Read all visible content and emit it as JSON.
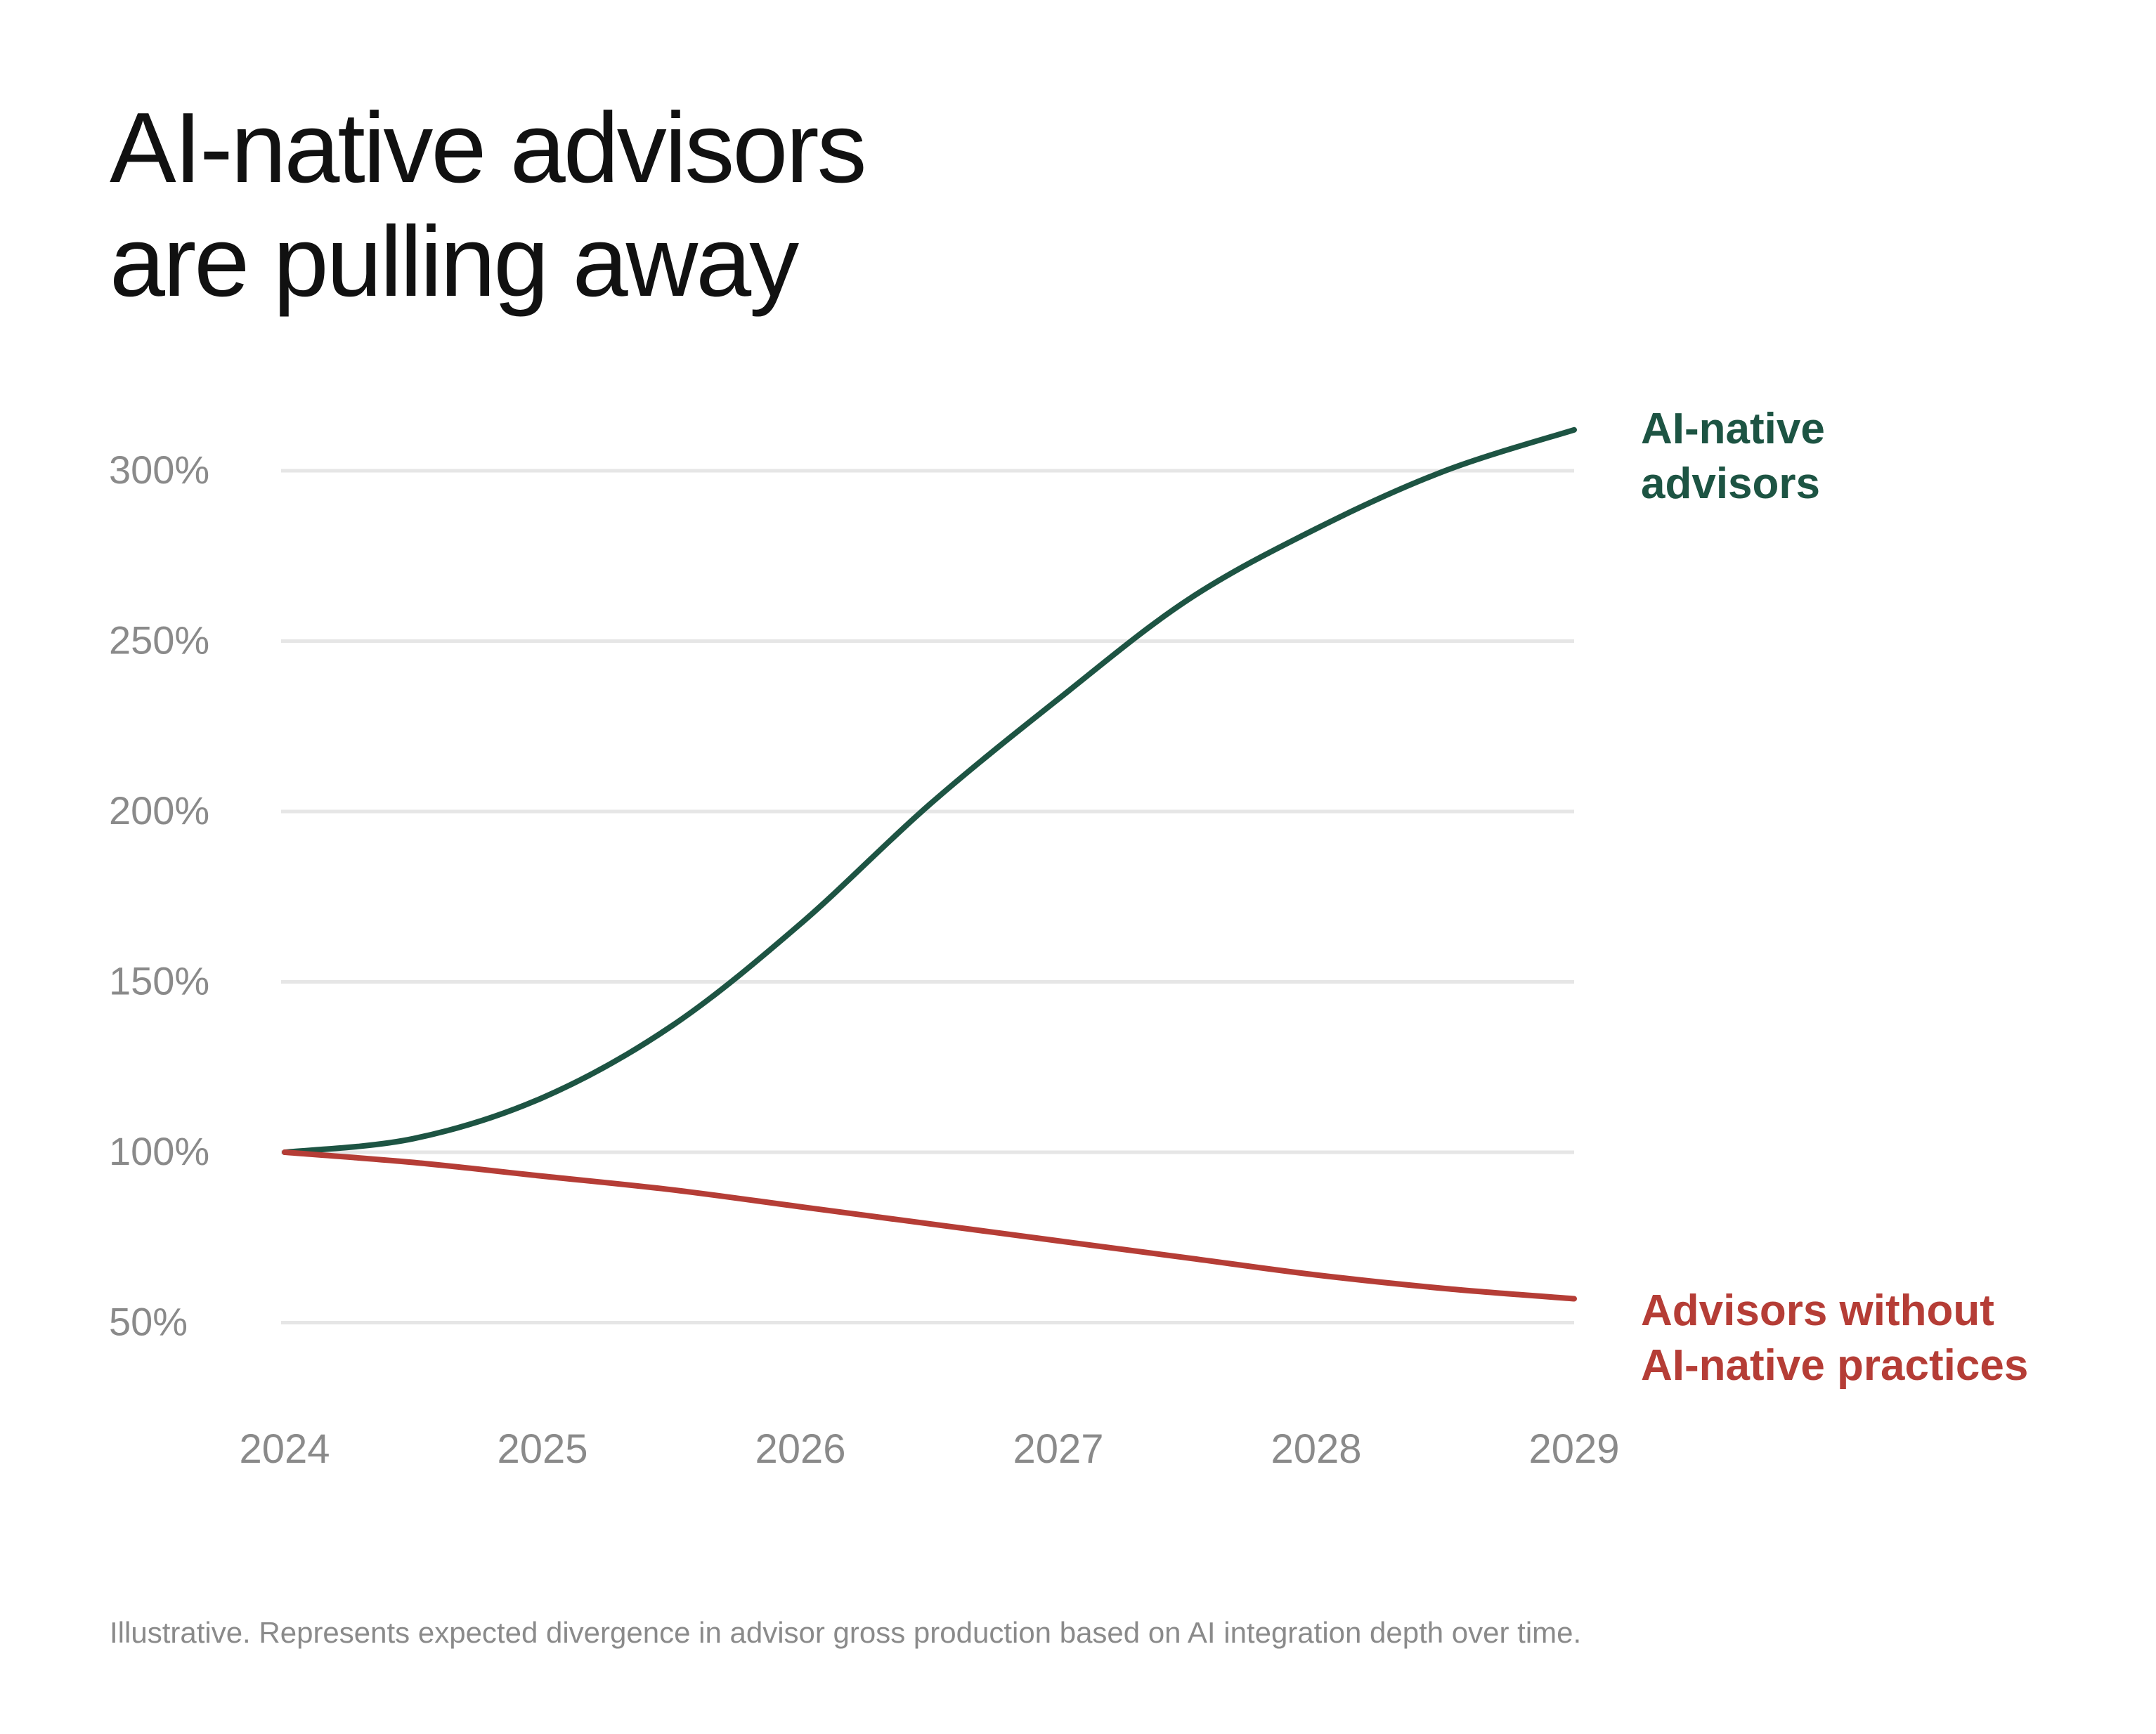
{
  "title_lines": [
    "AI-native advisors",
    "are pulling away"
  ],
  "footnote": "Illustrative. Represents expected divergence in advisor gross production based on AI integration depth over time.",
  "colors": {
    "ai_native": "#1d5443",
    "without": "#b53d36",
    "grid": "#e6e6e6",
    "tick": "#8a8a8a"
  },
  "chart_data": {
    "type": "line",
    "title": "AI-native advisors are pulling away",
    "xlabel": "",
    "ylabel": "",
    "x": [
      2024,
      2025,
      2026,
      2027,
      2028,
      2029
    ],
    "x_tick_labels": [
      "2024",
      "2025",
      "2026",
      "2027",
      "2028",
      "2029"
    ],
    "y_ticks": [
      50,
      100,
      150,
      200,
      250,
      300
    ],
    "y_tick_labels": [
      "50%",
      "100%",
      "150%",
      "200%",
      "250%",
      "300%"
    ],
    "xlim": [
      2024,
      2029
    ],
    "ylim": [
      42,
      322
    ],
    "grid": true,
    "legend": "inline labels at line ends (right)",
    "series": [
      {
        "name": "AI-native advisors",
        "label_lines": [
          "AI-native",
          "advisors"
        ],
        "color": "#1d5443",
        "x": [
          2024,
          2024.5,
          2025,
          2025.5,
          2026,
          2026.5,
          2027,
          2027.5,
          2028,
          2028.5,
          2029
        ],
        "values": [
          100,
          104,
          116,
          137,
          167,
          202,
          233,
          262,
          283,
          300,
          312
        ]
      },
      {
        "name": "Advisors without AI-native practices",
        "label_lines": [
          "Advisors without",
          "AI-native practices"
        ],
        "color": "#b53d36",
        "x": [
          2024,
          2024.5,
          2025,
          2025.5,
          2026,
          2026.5,
          2027,
          2027.5,
          2028,
          2028.5,
          2029
        ],
        "values": [
          100,
          97,
          93,
          89,
          84,
          79,
          74,
          69,
          64,
          60,
          57
        ]
      }
    ]
  }
}
